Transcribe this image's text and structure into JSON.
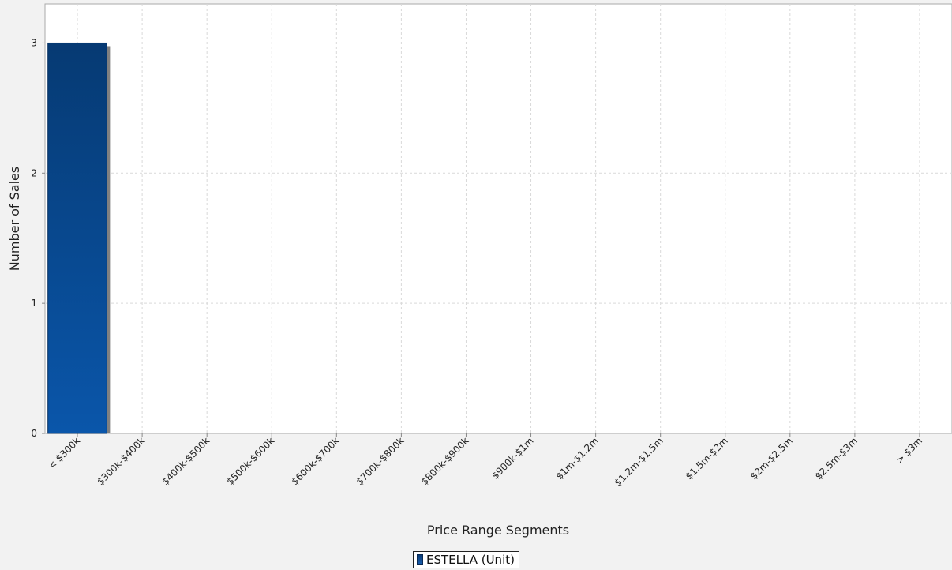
{
  "chart_data": {
    "type": "bar",
    "title": "",
    "xlabel": "Price Range Segments",
    "ylabel": "Number of Sales",
    "categories": [
      "< $300k",
      "$300k-$400k",
      "$400k-$500k",
      "$500k-$600k",
      "$600k-$700k",
      "$700k-$800k",
      "$800k-$900k",
      "$900k-$1m",
      "$1m-$1.2m",
      "$1.2m-$1.5m",
      "$1.5m-$2m",
      "$2m-$2.5m",
      "$2.5m-$3m",
      "> $3m"
    ],
    "series": [
      {
        "name": "ESTELLA (Unit)",
        "values": [
          3,
          0,
          0,
          0,
          0,
          0,
          0,
          0,
          0,
          0,
          0,
          0,
          0,
          0
        ],
        "color": "#0a4a8f"
      }
    ],
    "ylim": [
      0,
      3.3
    ],
    "yticks": [
      0,
      1,
      2,
      3
    ],
    "grid": true,
    "legend_position": "bottom-center"
  }
}
